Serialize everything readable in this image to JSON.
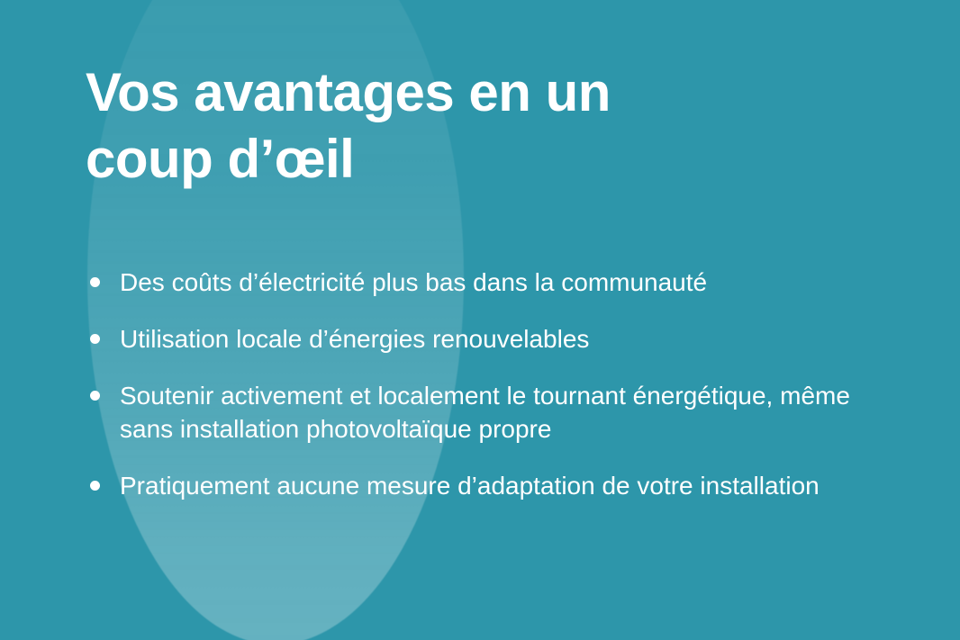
{
  "slide": {
    "title": "Vos avantages en un coup d’œil",
    "bullets": [
      {
        "text": "Des coûts d’électricité plus bas dans la communauté"
      },
      {
        "text": "Utilisation locale d’énergies renouvelables"
      },
      {
        "text": "Soutenir activement et localement le tournant énergétique, même sans installation photovoltaïque propre"
      },
      {
        "text": "Pratiquement aucune mesure d’adaptation de votre installation"
      }
    ],
    "colors": {
      "background": "#2D96AA",
      "highlight_circle_bottom": "#5FC0D5",
      "highlight_circle_top": "#3DA5BB",
      "text": "#FFFFFF"
    }
  }
}
